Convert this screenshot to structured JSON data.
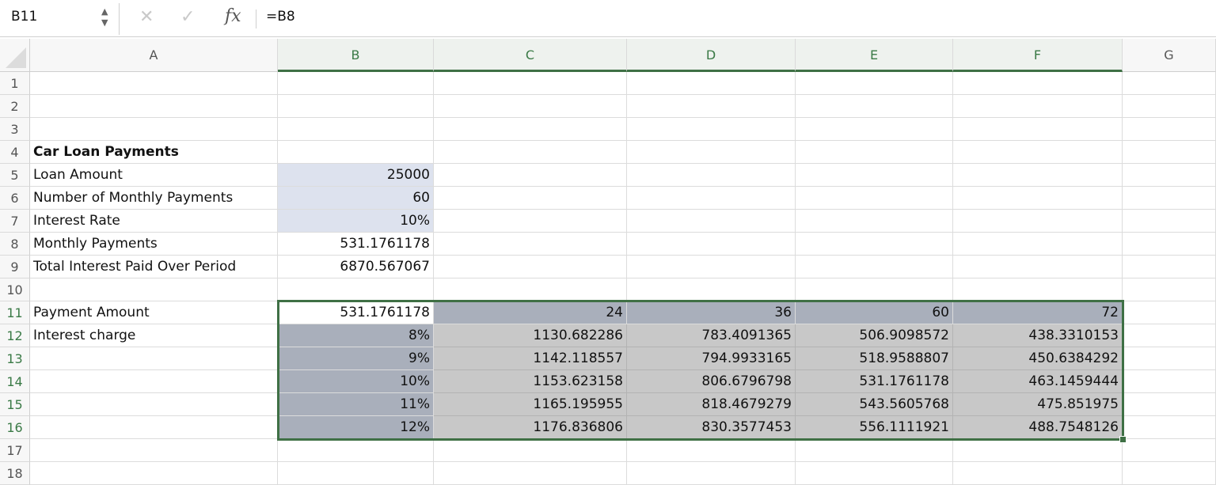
{
  "formula_bar": {
    "name_box": "B11",
    "formula": "=B8",
    "cancel_icon": "✕",
    "enter_icon": "✓",
    "fx_label": "fx"
  },
  "columns": [
    "A",
    "B",
    "C",
    "D",
    "E",
    "F",
    "G"
  ],
  "selected_columns": [
    "B",
    "C",
    "D",
    "E",
    "F"
  ],
  "rows": [
    "1",
    "2",
    "3",
    "4",
    "5",
    "6",
    "7",
    "8",
    "9",
    "10",
    "11",
    "12",
    "13",
    "14",
    "15",
    "16",
    "17",
    "18"
  ],
  "selected_rows": [
    "11",
    "12",
    "13",
    "14",
    "15",
    "16"
  ],
  "selection": "B11:F16",
  "colors": {
    "selection": "#3f7045",
    "input_fill": "#dde2ee",
    "header_fill": "#a9afbb",
    "table_fill": "#c8c8c8"
  },
  "cells": {
    "A4": "Car Loan Payments",
    "A5": "Loan Amount",
    "B5": "25000",
    "A6": "Number of Monthly Payments",
    "B6": "60",
    "A7": "Interest Rate",
    "B7": "10%",
    "A8": "Monthly Payments",
    "B8": "531.1761178",
    "A9": "Total Interest Paid Over Period",
    "B9": "6870.567067",
    "A11": "Payment Amount",
    "B11": "531.1761178",
    "C11": "24",
    "D11": "36",
    "E11": "60",
    "F11": "72",
    "A12": "Interest charge",
    "B12": "8%",
    "C12": "1130.682286",
    "D12": "783.4091365",
    "E12": "506.9098572",
    "F12": "438.3310153",
    "B13": "9%",
    "C13": "1142.118557",
    "D13": "794.9933165",
    "E13": "518.9588807",
    "F13": "450.6384292",
    "B14": "10%",
    "C14": "1153.623158",
    "D14": "806.6796798",
    "E14": "531.1761178",
    "F14": "463.1459444",
    "B15": "11%",
    "C15": "1165.195955",
    "D15": "818.4679279",
    "E15": "543.5605768",
    "F15": "475.851975",
    "B16": "12%",
    "C16": "1176.836806",
    "D16": "830.3577453",
    "E16": "556.1111921",
    "F16": "488.7548126"
  }
}
